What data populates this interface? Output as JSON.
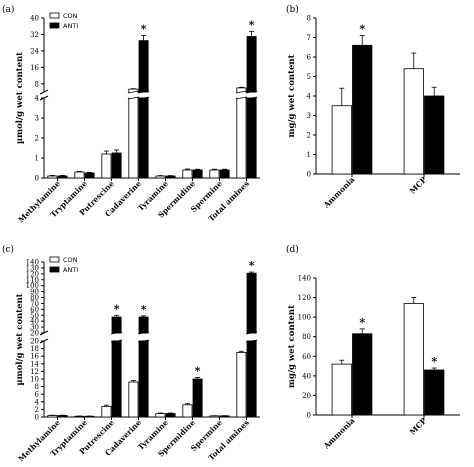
{
  "colors": {
    "con": "#ffffff",
    "anti": "#000000",
    "axis": "#000000"
  },
  "chart_data": [
    {
      "panel_label": "(a)",
      "type": "bar",
      "ylabel": "µmol/g wet content",
      "categories": [
        "Methylamine",
        "Tryptamine",
        "Putrescine",
        "Cadaverine",
        "Tyramine",
        "Spermidine",
        "Spermine",
        "Total amines"
      ],
      "series": [
        {
          "name": "CON",
          "values": [
            0.1,
            0.3,
            1.2,
            5.4,
            0.1,
            0.4,
            0.4,
            6.0
          ],
          "errors": [
            0.03,
            0.03,
            0.15,
            0.2,
            0.02,
            0.05,
            0.04,
            0.3
          ]
        },
        {
          "name": "ANTI",
          "values": [
            0.1,
            0.25,
            1.25,
            29,
            0.1,
            0.4,
            0.4,
            31
          ],
          "errors": [
            0.03,
            0.03,
            0.15,
            2.5,
            0.02,
            0.04,
            0.04,
            2.5
          ]
        }
      ],
      "significant": [
        false,
        false,
        false,
        true,
        false,
        false,
        false,
        true
      ],
      "broken_axis": {
        "lower_ticks": [
          0,
          1,
          2,
          3,
          4
        ],
        "upper_ticks": [
          8,
          16,
          24,
          32,
          40
        ]
      },
      "legend": "top-left"
    },
    {
      "panel_label": "(b)",
      "type": "bar",
      "ylabel": "mg/g wet content",
      "categories": [
        "Ammonia",
        "MCP"
      ],
      "series": [
        {
          "name": "CON",
          "values": [
            3.5,
            5.4
          ],
          "errors": [
            0.9,
            0.8
          ]
        },
        {
          "name": "ANTI",
          "values": [
            6.6,
            4.0
          ],
          "errors": [
            0.5,
            0.45
          ]
        }
      ],
      "significant": [
        true,
        false
      ],
      "ylim": [
        0,
        8
      ],
      "yticks": [
        0,
        1,
        2,
        3,
        4,
        5,
        6,
        7,
        8
      ]
    },
    {
      "panel_label": "(c)",
      "type": "bar",
      "ylabel": "µmol/g wet content",
      "categories": [
        "Methylamine",
        "Tryptamine",
        "Putrescine",
        "Cadaverine",
        "Tyramine",
        "Spermidine",
        "Spermine",
        "Total amines"
      ],
      "series": [
        {
          "name": "CON",
          "values": [
            0.4,
            0.2,
            2.8,
            9.2,
            0.9,
            3.2,
            0.3,
            17
          ],
          "errors": [
            0.08,
            0.05,
            0.3,
            0.4,
            0.15,
            0.3,
            0.05,
            0.3
          ]
        },
        {
          "name": "ANTI",
          "values": [
            0.4,
            0.2,
            47,
            47,
            0.9,
            10,
            0.3,
            121
          ],
          "errors": [
            0.08,
            0.05,
            3,
            2,
            0.15,
            0.4,
            0.05,
            2
          ]
        }
      ],
      "significant": [
        false,
        false,
        true,
        true,
        false,
        true,
        false,
        true
      ],
      "broken_axis": {
        "lower_ticks": [
          0,
          2,
          4,
          6,
          8,
          10,
          12,
          14,
          16,
          18,
          20
        ],
        "upper_ticks": [
          20,
          30,
          40,
          50,
          60,
          70,
          80,
          90,
          100,
          110,
          120,
          130,
          140
        ]
      },
      "legend": "top-left"
    },
    {
      "panel_label": "(d)",
      "type": "bar",
      "ylabel": "mg/g wet content",
      "categories": [
        "Ammonia",
        "MCP"
      ],
      "series": [
        {
          "name": "CON",
          "values": [
            52,
            114
          ],
          "errors": [
            4,
            6
          ]
        },
        {
          "name": "ANTI",
          "values": [
            83,
            46
          ],
          "errors": [
            5,
            2
          ]
        }
      ],
      "significant": [
        true,
        true
      ],
      "ylim": [
        0,
        140
      ],
      "yticks": [
        0,
        20,
        40,
        60,
        80,
        100,
        120,
        140
      ]
    }
  ]
}
